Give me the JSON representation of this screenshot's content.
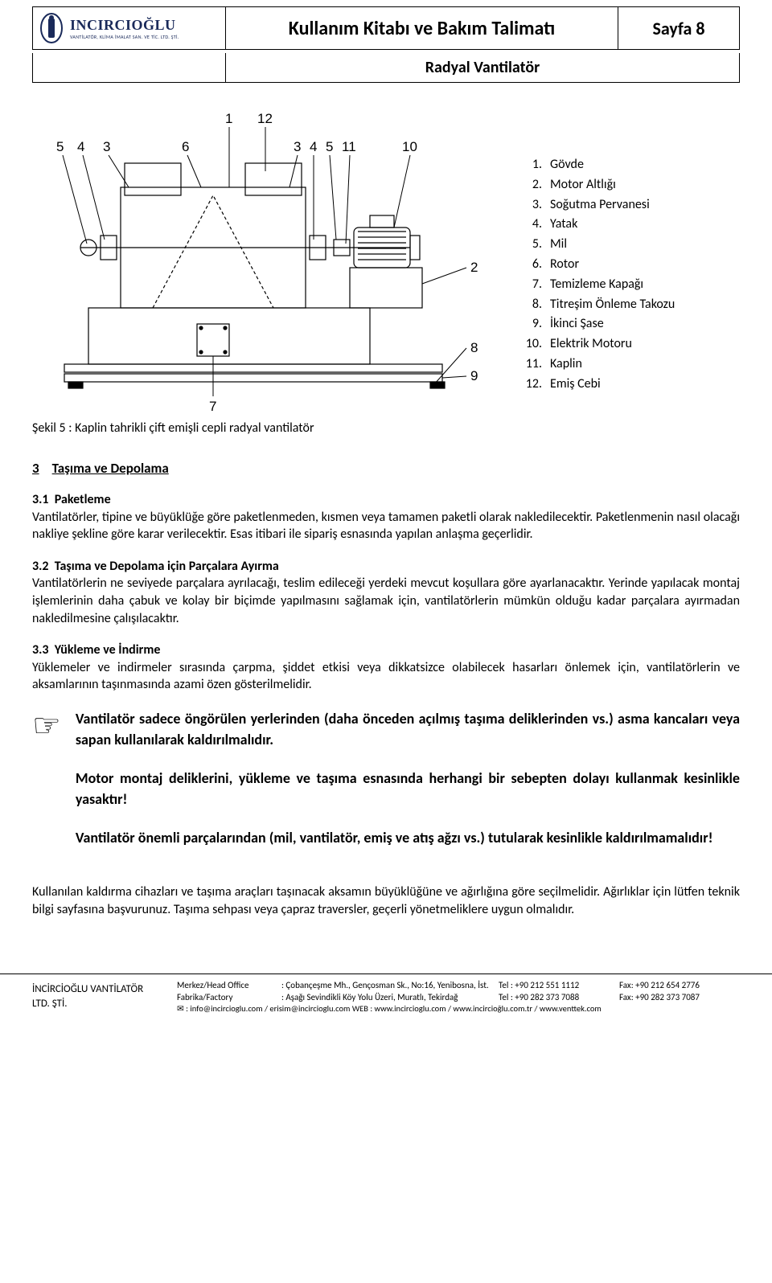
{
  "header": {
    "logo_name": "INCIRCIOĞLU",
    "logo_sub": "VANTİLATÖR, KLİMA İMALAT SAN. VE TİC. LTD. ŞTİ.",
    "title": "Kullanım Kitabı ve Bakım Talimatı",
    "page_label": "Sayfa 8",
    "subtitle": "Radyal Vantilatör"
  },
  "figure": {
    "callouts_top": [
      "5",
      "4",
      "3",
      "6",
      "1",
      "12",
      "3",
      "4",
      "5",
      "11",
      "10"
    ],
    "callouts_side": [
      "2",
      "8",
      "9",
      "7"
    ],
    "parts": [
      {
        "n": "1.",
        "label": "Gövde"
      },
      {
        "n": "2.",
        "label": "Motor Altlığı"
      },
      {
        "n": "3.",
        "label": "Soğutma Pervanesi"
      },
      {
        "n": "4.",
        "label": "Yatak"
      },
      {
        "n": "5.",
        "label": "Mil"
      },
      {
        "n": "6.",
        "label": "Rotor"
      },
      {
        "n": "7.",
        "label": "Temizleme Kapağı"
      },
      {
        "n": "8.",
        "label": "Titreşim Önleme Takozu"
      },
      {
        "n": "9.",
        "label": "İkinci Şase"
      },
      {
        "n": "10.",
        "label": "Elektrik Motoru"
      },
      {
        "n": "11.",
        "label": "Kaplin"
      },
      {
        "n": "12.",
        "label": "Emiş Cebi"
      }
    ],
    "caption": "Şekil 5 : Kaplin tahrikli çift emişli cepli radyal vantilatör"
  },
  "sections": {
    "s3_num": "3",
    "s3_title": "Taşıma ve Depolama",
    "s31_num": "3.1",
    "s31_title": "Paketleme",
    "s31_body": "Vantilatörler, tipine ve büyüklüğe göre paketlenmeden, kısmen veya tamamen paketli olarak nakledilecektir. Paketlenmenin nasıl olacağı nakliye şekline göre karar verilecektir. Esas itibari ile sipariş esnasında yapılan anlaşma geçerlidir.",
    "s32_num": "3.2",
    "s32_title": "Taşıma ve Depolama için Parçalara Ayırma",
    "s32_body": "Vantilatörlerin ne seviyede parçalara ayrılacağı, teslim edileceği yerdeki mevcut koşullara göre ayarlanacaktır. Yerinde yapılacak montaj işlemlerinin daha çabuk ve kolay bir biçimde yapılmasını sağlamak için, vantilatörlerin mümkün olduğu kadar parçalara ayırmadan nakledilmesine çalışılacaktır.",
    "s33_num": "3.3",
    "s33_title": "Yükleme ve İndirme",
    "s33_body": "Yüklemeler ve indirmeler sırasında çarpma, şiddet etkisi veya dikkatsizce olabilecek hasarları önlemek için, vantilatörlerin ve aksamlarının taşınmasında azami özen gösterilmelidir.",
    "note1": "Vantilatör sadece öngörülen yerlerinden (daha önceden açılmış taşıma deliklerinden vs.) asma kancaları veya sapan kullanılarak kaldırılmalıdır.",
    "note2": "Motor montaj deliklerini, yükleme ve taşıma esnasında herhangi bir sebepten dolayı kullanmak kesinlikle yasaktır!",
    "note3": "Vantilatör önemli parçalarından (mil, vantilatör, emiş ve atış ağzı vs.) tutularak kesinlikle kaldırılmamalıdır!",
    "closing": "Kullanılan kaldırma cihazları ve taşıma araçları taşınacak aksamın büyüklüğüne ve ağırlığına göre seçilmelidir. Ağırlıklar için lütfen teknik bilgi sayfasına başvurunuz. Taşıma sehpası veya çapraz traversler, geçerli yönetmeliklere uygun olmalıdır."
  },
  "footer": {
    "company": "İNCİRCİOĞLU VANTİLATÖR\nLTD. ŞTİ.",
    "lines": [
      {
        "a": "Merkez/Head Office",
        "b": ": Çobançeşme Mh., Gençosman Sk., No:16, Yenibosna, İst.",
        "c": "Tel :  +90 212 551 1112",
        "d": "Fax:  +90 212 654 2776"
      },
      {
        "a": "Fabrika/Factory",
        "b": ": Aşağı Sevindikli Köy Yolu Üzeri, Muratlı, Tekirdağ",
        "c": "Tel :  +90 282 373 7088",
        "d": "Fax:  +90 282 373 7087"
      }
    ],
    "web": "✉ : info@incircioglu.com  /  erisim@incircioglu.com   WEB :  www.incircioglu.com  /  www.incircioğlu.com.tr  /  www.venttek.com"
  },
  "colors": {
    "logo_blue": "#1a2a5a",
    "text": "#000000",
    "bg": "#ffffff",
    "line": "#000000"
  }
}
